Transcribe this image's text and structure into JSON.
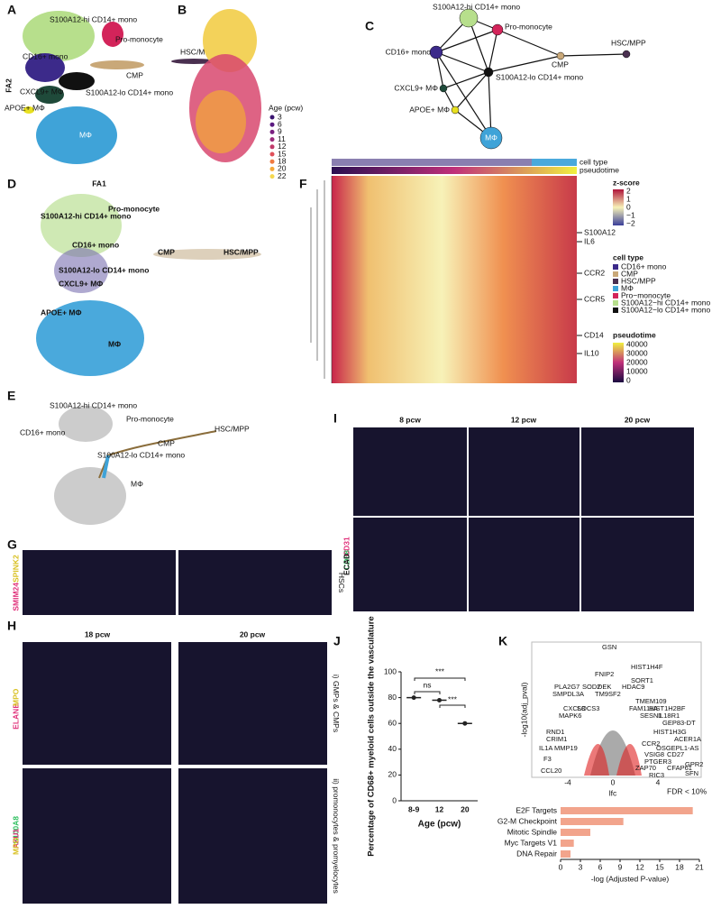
{
  "panels": {
    "A": {
      "letter": "A",
      "xlabel": "FA1",
      "ylabel": "FA2",
      "labels": [
        "S100A12-hi CD14+ mono",
        "Pro-monocyte",
        "CD16+ mono",
        "HSC/MPP",
        "CMP",
        "S100A12-lo CD14+ mono",
        "CXCL9+ MΦ",
        "APOE+ MΦ",
        "MΦ"
      ]
    },
    "B": {
      "letter": "B",
      "legend_title": "Age (pcw)",
      "ages": [
        "3",
        "6",
        "9",
        "11",
        "12",
        "15",
        "18",
        "20",
        "22"
      ]
    },
    "C": {
      "letter": "C",
      "nodes": [
        "S100A12-hi CD14+ mono",
        "Pro-monocyte",
        "CD16+ mono",
        "HSC/MPP",
        "CMP",
        "S100A12-lo CD14+ mono",
        "CXCL9+ MΦ",
        "APOE+ MΦ",
        "MΦ"
      ]
    },
    "D": {
      "letter": "D",
      "labels": [
        "S100A12-hi CD14+ mono",
        "Pro-monocyte",
        "CD16+ mono",
        "HSC/MPP",
        "CMP",
        "S100A12-lo CD14+ mono",
        "CXCL9+ MΦ",
        "APOE+ MΦ",
        "MΦ"
      ]
    },
    "E": {
      "letter": "E",
      "labels": [
        "S100A12-hi CD14+ mono",
        "Pro-monocyte",
        "HSC/MPP",
        "CD16+ mono",
        "CMP",
        "S100A12-lo CD14+ mono",
        "MΦ"
      ]
    },
    "F": {
      "letter": "F",
      "bars": [
        "cell type",
        "pseudotime"
      ],
      "genes": [
        "S100A12",
        "IL6",
        "CCR2",
        "CCR5",
        "CD14",
        "IL10"
      ],
      "zscore_title": "z-score",
      "zscore_ticks": [
        "2",
        "1",
        "0",
        "−1",
        "−2"
      ],
      "celltype_title": "cell type",
      "celltypes": [
        "CD16+ mono",
        "CMP",
        "HSC/MPP",
        "MΦ",
        "Pro−monocyte",
        "S100A12−hi CD14+ mono",
        "S100A12−lo CD14+ mono"
      ],
      "pseudotime_title": "pseudotime",
      "pseudotime_ticks": [
        "40000",
        "30000",
        "20000",
        "10000",
        "0"
      ]
    },
    "G": {
      "letter": "G",
      "stains": [
        "SMIM24",
        "SPINK2"
      ],
      "side_label": "HSCs"
    },
    "H": {
      "letter": "H",
      "columns": [
        "18 pcw",
        "20 pcw"
      ],
      "row1_stains": [
        "ELANE",
        "MPO"
      ],
      "row1_label": "i) GMPs & CMPs",
      "row2_stains": [
        "S100A8",
        "AZU1",
        "MPO"
      ],
      "row2_label": "ii) promonocytes & promyelocytes"
    },
    "I": {
      "letter": "I",
      "columns": [
        "8 pcw",
        "12 pcw",
        "20 pcw"
      ],
      "stains": [
        "CD68",
        "CD31",
        "ECAD"
      ]
    },
    "J": {
      "letter": "J",
      "annotations": [
        "ns",
        "***",
        "***"
      ]
    },
    "K": {
      "letter": "K",
      "volcano_ylabel": "-log10(adj_pval)",
      "volcano_xlabel": "lfc",
      "volcano_xticks": [
        "-4",
        "0",
        "4"
      ],
      "fdr_label": "FDR < 10%",
      "genes": [
        "GSN",
        "HIST1H4F",
        "FNIP2",
        "SORT1",
        "PLA2G7",
        "SOD2",
        "DEK",
        "HDAC9",
        "SMPDL3A",
        "TM9SF2",
        "TMEM109",
        "CXCL8",
        "SOCS3",
        "FAM111A",
        "HIST1H2BF",
        "MAPK6",
        "SESN1",
        "IL18R1",
        "GEP83-DT",
        "RND1",
        "CRIM1",
        "IL1A",
        "MMP19",
        "F3",
        "CCL20",
        "CCR2",
        "OSGEPL1-AS",
        "VSIG8",
        "PTGER3",
        "CD27",
        "ZAP70",
        "CFAP61",
        "GPR2",
        "SFN",
        "RIC3",
        "HIST1H3G",
        "ACER1A"
      ]
    }
  },
  "chart_data": [
    {
      "type": "dot",
      "title": "J",
      "ylabel": "Percentage of CD68+ myeloid cells outside the vasculature",
      "xlabel": "Age (pcw)",
      "categories": [
        "8-9",
        "12",
        "20"
      ],
      "values": [
        80,
        78,
        60
      ],
      "color": "#222222",
      "ylim": [
        0,
        100
      ],
      "yticks": [
        0,
        20,
        40,
        60,
        80,
        100
      ]
    },
    {
      "type": "hbar",
      "title": "K",
      "xlabel": "-log (Adjusted P-value)",
      "categories": [
        "E2F Targets",
        "G2-M Checkpoint",
        "Mitotic Spindle",
        "Myc Targets V1",
        "DNA Repair"
      ],
      "values": [
        20,
        9.5,
        4.5,
        2,
        1.5
      ],
      "color": "#f2a48c",
      "xlim": [
        0,
        21
      ],
      "xticks": [
        0,
        3,
        6,
        9,
        12,
        15,
        18,
        21
      ]
    }
  ]
}
